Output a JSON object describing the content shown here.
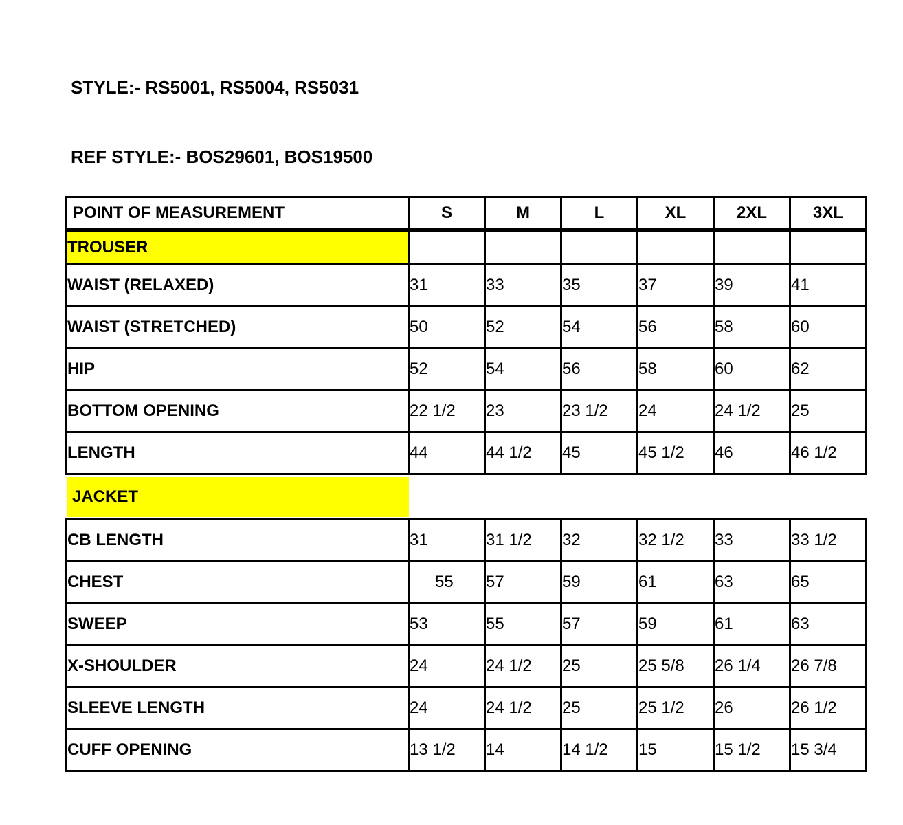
{
  "headings": {
    "style_line": "STYLE:- RS5001, RS5004, RS5031",
    "ref_style_line": "REF STYLE:- BOS29601, BOS19500"
  },
  "colors": {
    "highlight": "#FFFF00",
    "grid_line": "#000000",
    "text": "#000000",
    "background": "#FFFFFF"
  },
  "table": {
    "columns": [
      "POINT OF MEASUREMENT",
      "S",
      "M",
      "L",
      "XL",
      "2XL",
      "3XL"
    ],
    "sections": [
      {
        "label": "TROUSER",
        "display": "grid-row",
        "rows": [
          {
            "label": "WAIST (RELAXED)",
            "values": [
              "31",
              "33",
              "35",
              "37",
              "39",
              "41"
            ]
          },
          {
            "label": "WAIST (STRETCHED)",
            "values": [
              "50",
              "52",
              "54",
              "56",
              "58",
              "60"
            ]
          },
          {
            "label": "HIP",
            "values": [
              "52",
              "54",
              "56",
              "58",
              "60",
              "62"
            ]
          },
          {
            "label": "BOTTOM OPENING",
            "values": [
              "22 1/2",
              "23",
              "23 1/2",
              "24",
              "24 1/2",
              "25"
            ]
          },
          {
            "label": "LENGTH",
            "values": [
              "44",
              "44 1/2",
              "45",
              "45 1/2",
              "46",
              "46 1/2"
            ]
          }
        ]
      },
      {
        "label": "JACKET",
        "display": "band",
        "rows": [
          {
            "label": "CB LENGTH",
            "values": [
              "31",
              "31 1/2",
              "32",
              "32 1/2",
              "33",
              "33 1/2"
            ]
          },
          {
            "label": "CHEST",
            "values": [
              "55",
              "57",
              "59",
              "61",
              "63",
              "65"
            ],
            "first_value_extra_indent": true
          },
          {
            "label": "SWEEP",
            "values": [
              "53",
              "55",
              "57",
              "59",
              "61",
              "63"
            ]
          },
          {
            "label": "X-SHOULDER",
            "values": [
              "24",
              "24 1/2",
              "25",
              "25 5/8",
              "26 1/4",
              "26 7/8"
            ]
          },
          {
            "label": "SLEEVE LENGTH",
            "values": [
              "24",
              "24 1/2",
              "25",
              "25 1/2",
              "26",
              "26 1/2"
            ]
          },
          {
            "label": "CUFF OPENING",
            "values": [
              "13 1/2",
              "14",
              "14 1/2",
              "15",
              "15 1/2",
              "15 3/4"
            ]
          }
        ]
      }
    ]
  }
}
